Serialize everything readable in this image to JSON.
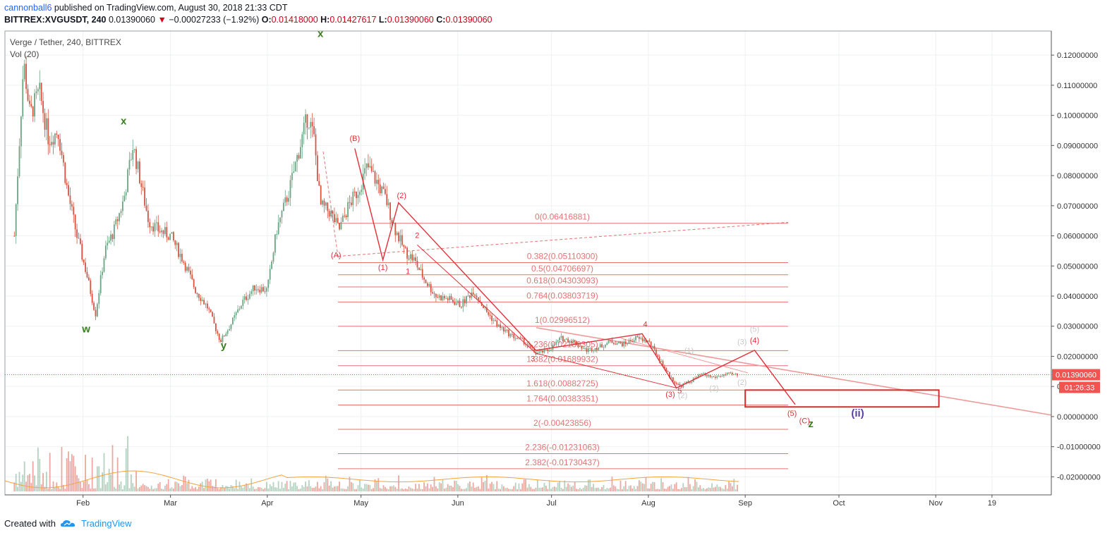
{
  "header": {
    "author": "cannonball6",
    "published_text": "published on TradingView.com, August 30, 2018 21:33 CDT",
    "symbol": "BITTREX:XVGUSDT, 240",
    "last_price": "0.01390060",
    "change": "−0.00027233 (−1.92%)",
    "ohlc": [
      {
        "label": "O:",
        "value": "0.01418000"
      },
      {
        "label": "H:",
        "value": "0.01427617"
      },
      {
        "label": "L:",
        "value": "0.01390060"
      },
      {
        "label": "C:",
        "value": "0.01390060"
      }
    ]
  },
  "legend": {
    "title": "Verge / Tether, 240, BITTREX",
    "volume": "Vol (20)"
  },
  "footer": {
    "created_with": "Created with",
    "brand": "TradingView"
  },
  "colors": {
    "up_candle": "#6ba583",
    "down_candle": "#d75442",
    "fib": "#e57373",
    "wave": "#e0303a",
    "wxy": "#3a7d22",
    "wave_ii": "#5b3fa0",
    "price_tag": "#f05350"
  },
  "chart_data": {
    "type": "candlestick",
    "title": "Verge / Tether, 240, BITTREX",
    "ylim": [
      -0.026,
      0.128
    ],
    "y_ticks": [
      "0.12000000",
      "0.11000000",
      "0.10000000",
      "0.09000000",
      "0.08000000",
      "0.07000000",
      "0.06000000",
      "0.05000000",
      "0.04000000",
      "0.03000000",
      "0.02000000",
      "0.01000000",
      "0.00000000",
      "-0.01000000",
      "-0.02000000"
    ],
    "x_ticks": [
      "Feb",
      "Mar",
      "Apr",
      "May",
      "Jun",
      "Jul",
      "Aug",
      "Sep",
      "Oct",
      "Nov",
      "19"
    ],
    "current_price": {
      "label": "0.01390060",
      "countdown": "01:26:33",
      "value": 0.0139006
    },
    "price_series": [
      [
        "2018-01-10",
        0.06
      ],
      [
        "2018-01-13",
        0.118
      ],
      [
        "2018-01-15",
        0.1
      ],
      [
        "2018-01-18",
        0.108
      ],
      [
        "2018-01-21",
        0.092
      ],
      [
        "2018-01-24",
        0.095
      ],
      [
        "2018-01-27",
        0.075
      ],
      [
        "2018-01-30",
        0.06
      ],
      [
        "2018-02-02",
        0.048
      ],
      [
        "2018-02-05",
        0.034
      ],
      [
        "2018-02-08",
        0.055
      ],
      [
        "2018-02-11",
        0.062
      ],
      [
        "2018-02-14",
        0.072
      ],
      [
        "2018-02-17",
        0.09
      ],
      [
        "2018-02-19",
        0.08
      ],
      [
        "2018-02-22",
        0.065
      ],
      [
        "2018-02-25",
        0.062
      ],
      [
        "2018-03-01",
        0.06
      ],
      [
        "2018-03-05",
        0.052
      ],
      [
        "2018-03-09",
        0.042
      ],
      [
        "2018-03-13",
        0.036
      ],
      [
        "2018-03-17",
        0.025
      ],
      [
        "2018-03-20",
        0.03
      ],
      [
        "2018-03-24",
        0.038
      ],
      [
        "2018-03-28",
        0.043
      ],
      [
        "2018-04-01",
        0.042
      ],
      [
        "2018-04-04",
        0.062
      ],
      [
        "2018-04-08",
        0.075
      ],
      [
        "2018-04-11",
        0.088
      ],
      [
        "2018-04-14",
        0.1
      ],
      [
        "2018-04-16",
        0.092
      ],
      [
        "2018-04-18",
        0.07
      ],
      [
        "2018-04-21",
        0.068
      ],
      [
        "2018-04-24",
        0.062
      ],
      [
        "2018-04-27",
        0.07
      ],
      [
        "2018-04-30",
        0.075
      ],
      [
        "2018-05-03",
        0.083
      ],
      [
        "2018-05-06",
        0.078
      ],
      [
        "2018-05-09",
        0.072
      ],
      [
        "2018-05-12",
        0.062
      ],
      [
        "2018-05-15",
        0.055
      ],
      [
        "2018-05-18",
        0.052
      ],
      [
        "2018-05-21",
        0.046
      ],
      [
        "2018-05-25",
        0.04
      ],
      [
        "2018-05-29",
        0.039
      ],
      [
        "2018-06-02",
        0.037
      ],
      [
        "2018-06-06",
        0.042
      ],
      [
        "2018-06-10",
        0.035
      ],
      [
        "2018-06-14",
        0.03
      ],
      [
        "2018-06-18",
        0.027
      ],
      [
        "2018-06-22",
        0.025
      ],
      [
        "2018-06-26",
        0.021
      ],
      [
        "2018-06-30",
        0.022
      ],
      [
        "2018-07-04",
        0.026
      ],
      [
        "2018-07-08",
        0.025
      ],
      [
        "2018-07-12",
        0.022
      ],
      [
        "2018-07-16",
        0.023
      ],
      [
        "2018-07-20",
        0.025
      ],
      [
        "2018-07-24",
        0.024
      ],
      [
        "2018-07-28",
        0.026
      ],
      [
        "2018-08-01",
        0.025
      ],
      [
        "2018-08-04",
        0.02
      ],
      [
        "2018-08-08",
        0.013
      ],
      [
        "2018-08-11",
        0.01
      ],
      [
        "2018-08-15",
        0.012
      ],
      [
        "2018-08-18",
        0.014
      ],
      [
        "2018-08-22",
        0.013
      ],
      [
        "2018-08-26",
        0.014
      ],
      [
        "2018-08-30",
        0.0139
      ]
    ],
    "fib_levels": [
      {
        "ratio": "0",
        "value": 0.06416881,
        "label": "0(0.06416881)"
      },
      {
        "ratio": "0.382",
        "value": 0.051103,
        "label": "0.382(0.05110300)"
      },
      {
        "ratio": "0.5",
        "value": 0.04706697,
        "label": "0.5(0.04706697)"
      },
      {
        "ratio": "0.618",
        "value": 0.04303093,
        "label": "0.618(0.04303093)"
      },
      {
        "ratio": "0.764",
        "value": 0.03803719,
        "label": "0.764(0.03803719)"
      },
      {
        "ratio": "1",
        "value": 0.02996512,
        "label": "1(0.02996512)"
      },
      {
        "ratio": "1.236",
        "value": 0.02189305,
        "label": "1.236(0.02189305)"
      },
      {
        "ratio": "1.382",
        "value": 0.01689932,
        "label": "1.382(0.01689932)"
      },
      {
        "ratio": "1.618",
        "value": 0.00882725,
        "label": "1.618(0.00882725)"
      },
      {
        "ratio": "1.764",
        "value": 0.00383351,
        "label": "1.764(0.00383351)"
      },
      {
        "ratio": "2",
        "value": -0.00423856,
        "label": "2(-0.00423856)"
      },
      {
        "ratio": "2.236",
        "value": -0.01231063,
        "label": "2.236(-0.01231063)"
      },
      {
        "ratio": "2.382",
        "value": -0.01730437,
        "label": "2.382(-0.01730437)"
      }
    ],
    "wave_path": [
      [
        "2018-04-29",
        0.089
      ],
      [
        "2018-05-08",
        0.052
      ],
      [
        "2018-05-13",
        0.071
      ],
      [
        "2018-06-26",
        0.022
      ],
      [
        "2018-07-30",
        0.0275
      ],
      [
        "2018-08-10",
        0.0095
      ],
      [
        "2018-09-04",
        0.022
      ],
      [
        "2018-09-17",
        0.004
      ]
    ],
    "target_box": {
      "x0": "2018-09-01",
      "x1": "2018-11-02",
      "y0": 0.0088,
      "y1": 0.0032
    },
    "annotations": [
      {
        "text": "x",
        "x": "2018-04-18",
        "y": 0.126,
        "group": "wxy"
      },
      {
        "text": "x",
        "x": "2018-02-14",
        "y": 0.097,
        "group": "wxy"
      },
      {
        "text": "w",
        "x": "2018-02-02",
        "y": 0.028,
        "group": "wxy"
      },
      {
        "text": "y",
        "x": "2018-03-18",
        "y": 0.0225,
        "group": "wxy"
      },
      {
        "text": "z",
        "x": "2018-09-22",
        "y": -0.0035,
        "group": "wxy"
      },
      {
        "text": "(B)",
        "x": "2018-04-29",
        "y": 0.0915,
        "group": "wave"
      },
      {
        "text": "(A)",
        "x": "2018-04-23",
        "y": 0.0528,
        "group": "wave"
      },
      {
        "text": "(1)",
        "x": "2018-05-08",
        "y": 0.0487,
        "group": "wave"
      },
      {
        "text": "(2)",
        "x": "2018-05-14",
        "y": 0.0725,
        "group": "wave"
      },
      {
        "text": "1",
        "x": "2018-05-16",
        "y": 0.0474,
        "group": "wave"
      },
      {
        "text": "2",
        "x": "2018-05-19",
        "y": 0.0593,
        "group": "wave"
      },
      {
        "text": "3",
        "x": "2018-06-25",
        "y": 0.0183,
        "group": "wave"
      },
      {
        "text": "4",
        "x": "2018-07-31",
        "y": 0.0298,
        "group": "wave"
      },
      {
        "text": "5",
        "x": "2018-08-11",
        "y": 0.0077,
        "group": "wave"
      },
      {
        "text": "(3)",
        "x": "2018-08-08",
        "y": 0.0065,
        "group": "wave"
      },
      {
        "text": "(4)",
        "x": "2018-09-04",
        "y": 0.0244,
        "group": "wave"
      },
      {
        "text": "(5)",
        "x": "2018-09-16",
        "y": 0.0002,
        "group": "wave"
      },
      {
        "text": "(C)",
        "x": "2018-09-20",
        "y": -0.0022,
        "group": "wave"
      },
      {
        "text": "(ii)",
        "x": "2018-10-07",
        "y": 0.0,
        "group": "wave_ii"
      },
      {
        "text": "(2)",
        "x": "2018-08-12",
        "y": 0.0062,
        "group": "faint"
      },
      {
        "text": "(2)",
        "x": "2018-08-22",
        "y": 0.0085,
        "group": "faint"
      },
      {
        "text": "(2)",
        "x": "2018-08-31",
        "y": 0.0105,
        "group": "faint"
      },
      {
        "text": "(1)",
        "x": "2018-08-14",
        "y": 0.021,
        "group": "faint"
      },
      {
        "text": "(3)",
        "x": "2018-08-31",
        "y": 0.024,
        "group": "faint"
      },
      {
        "text": "(5)",
        "x": "2018-09-04",
        "y": 0.0282,
        "group": "faint"
      }
    ]
  }
}
